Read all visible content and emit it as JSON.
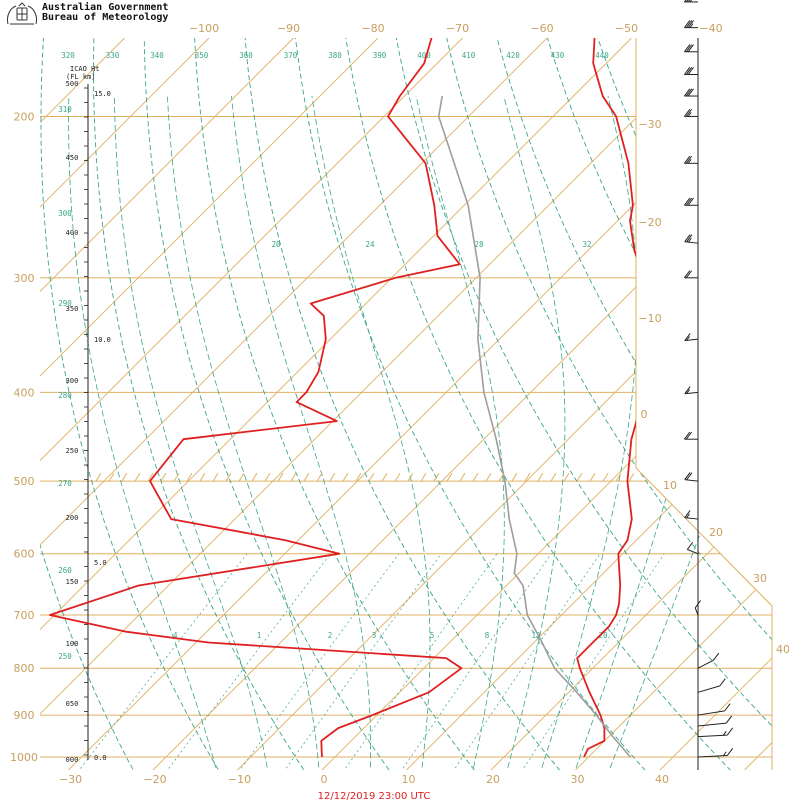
{
  "header": {
    "org_line1": "Australian Government",
    "org_line2": "Bureau of Meteorology",
    "height_units_line1": "ICAO Ht",
    "height_units_line2": "(FL  km)",
    "timestamp": "12/12/2019 23:00  UTC"
  },
  "colors": {
    "isotherm": "#e0b060",
    "isobar": "#e0b060",
    "dry_adiabat": "#3aa58a",
    "moist_adiabat": "#3aa58a",
    "mixing_ratio": "#3aa58a",
    "temperature": "#e02020",
    "dewpoint": "#e02020",
    "parcel": "#9e9e9e"
  },
  "chart_data": {
    "type": "line",
    "title": "",
    "xlabel": "",
    "ylabel": "",
    "pressure_levels": [
      1000,
      900,
      800,
      700,
      600,
      500,
      400,
      300,
      200
    ],
    "top_temp_labels": [
      -100,
      -90,
      -80,
      -70,
      -60,
      -50,
      -40
    ],
    "bottom_temp_labels": [
      -30,
      -20,
      -10,
      0,
      10,
      20,
      30,
      40
    ],
    "right_temp_labels": [
      -30,
      -20,
      -10,
      0,
      10,
      20,
      30,
      40
    ],
    "theta_labels": [
      320,
      330,
      340,
      350,
      360,
      370,
      380,
      390,
      400,
      410,
      420,
      430,
      440
    ],
    "theta_left_labels": [
      310,
      300,
      290,
      280,
      270,
      260,
      250
    ],
    "mixing_ratio_labels_upper": [
      20,
      24,
      28,
      32
    ],
    "mixing_ratio_labels_lower": [
      ".4",
      "1",
      "2",
      "3",
      "5",
      "8",
      "12",
      "20"
    ],
    "height_km_labels": [
      "15.0",
      "10.0",
      "5.0",
      "0.0"
    ],
    "fl_labels": [
      500,
      450,
      400,
      350,
      300,
      250,
      200,
      150,
      100,
      "050",
      "000"
    ],
    "series": [
      {
        "name": "",
        "key": "temperature",
        "points": [
          [
            1000,
            31
          ],
          [
            980,
            30.5
          ],
          [
            960,
            31.5
          ],
          [
            930,
            30
          ],
          [
            900,
            28
          ],
          [
            850,
            24
          ],
          [
            800,
            20
          ],
          [
            780,
            18.5
          ],
          [
            750,
            18.5
          ],
          [
            720,
            18.5
          ],
          [
            700,
            18
          ],
          [
            680,
            17
          ],
          [
            650,
            15
          ],
          [
            600,
            11
          ],
          [
            580,
            10.5
          ],
          [
            550,
            8.5
          ],
          [
            500,
            3.5
          ],
          [
            450,
            -1
          ],
          [
            400,
            -5
          ],
          [
            350,
            -10
          ],
          [
            330,
            -13
          ],
          [
            300,
            -18.5
          ],
          [
            280,
            -23
          ],
          [
            260,
            -27
          ],
          [
            250,
            -28.5
          ],
          [
            225,
            -34
          ],
          [
            200,
            -41
          ],
          [
            190,
            -45
          ],
          [
            175,
            -50
          ],
          [
            160,
            -54
          ],
          [
            150,
            -56
          ],
          [
            140,
            -58
          ],
          [
            130,
            -59
          ],
          [
            125,
            -60
          ],
          [
            115,
            -58.5
          ],
          [
            110,
            -52
          ],
          [
            105,
            -50
          ]
        ]
      },
      {
        "name": "",
        "key": "dewpoint",
        "points": [
          [
            1000,
            0
          ],
          [
            980,
            -1
          ],
          [
            960,
            -2
          ],
          [
            930,
            -1.5
          ],
          [
            900,
            1
          ],
          [
            850,
            5
          ],
          [
            800,
            6
          ],
          [
            780,
            3
          ],
          [
            750,
            -27
          ],
          [
            730,
            -38
          ],
          [
            700,
            -49
          ],
          [
            650,
            -42
          ],
          [
            600,
            -22
          ],
          [
            580,
            -30
          ],
          [
            550,
            -46
          ],
          [
            500,
            -53
          ],
          [
            450,
            -54
          ],
          [
            430,
            -38
          ],
          [
            410,
            -45
          ],
          [
            400,
            -45
          ],
          [
            380,
            -46
          ],
          [
            350,
            -49
          ],
          [
            330,
            -52
          ],
          [
            320,
            -55
          ],
          [
            300,
            -48
          ],
          [
            290,
            -42
          ],
          [
            270,
            -48
          ],
          [
            250,
            -52
          ],
          [
            225,
            -58
          ],
          [
            200,
            -68
          ],
          [
            190,
            -69
          ],
          [
            175,
            -70
          ],
          [
            160,
            -73
          ],
          [
            150,
            -73
          ],
          [
            140,
            -73.5
          ],
          [
            130,
            -73.5
          ],
          [
            125,
            -73.5
          ],
          [
            115,
            -72
          ],
          [
            110,
            -71
          ],
          [
            105,
            -74
          ]
        ]
      },
      {
        "name": "",
        "key": "parcel",
        "points": [
          [
            1000,
            36.5
          ],
          [
            950,
            32
          ],
          [
            900,
            27.5
          ],
          [
            850,
            22.5
          ],
          [
            800,
            17
          ],
          [
            750,
            12.5
          ],
          [
            700,
            7.5
          ],
          [
            650,
            3.5
          ],
          [
            630,
            1
          ],
          [
            600,
            -1
          ],
          [
            550,
            -6
          ],
          [
            500,
            -11
          ],
          [
            450,
            -17
          ],
          [
            400,
            -24
          ],
          [
            350,
            -31
          ],
          [
            300,
            -38
          ],
          [
            250,
            -48
          ],
          [
            200,
            -62
          ],
          [
            190,
            -64
          ]
        ]
      }
    ],
    "winds": [
      [
        1000,
        80,
        15
      ],
      [
        950,
        80,
        15
      ],
      [
        925,
        70,
        10
      ],
      [
        900,
        60,
        10
      ],
      [
        850,
        40,
        10
      ],
      [
        800,
        20,
        10
      ],
      [
        700,
        330,
        10
      ],
      [
        600,
        300,
        10
      ],
      [
        550,
        280,
        15
      ],
      [
        500,
        280,
        20
      ],
      [
        450,
        270,
        20
      ],
      [
        400,
        260,
        15
      ],
      [
        350,
        260,
        15
      ],
      [
        300,
        270,
        20
      ],
      [
        275,
        280,
        25
      ],
      [
        250,
        270,
        30
      ],
      [
        225,
        270,
        25
      ],
      [
        200,
        270,
        25
      ],
      [
        190,
        270,
        30
      ],
      [
        180,
        270,
        30
      ],
      [
        170,
        270,
        30
      ],
      [
        160,
        270,
        35
      ],
      [
        150,
        270,
        40
      ],
      [
        140,
        270,
        30
      ],
      [
        130,
        260,
        25
      ],
      [
        115,
        250,
        15
      ],
      [
        110,
        250,
        20
      ],
      [
        105,
        240,
        10
      ]
    ]
  }
}
